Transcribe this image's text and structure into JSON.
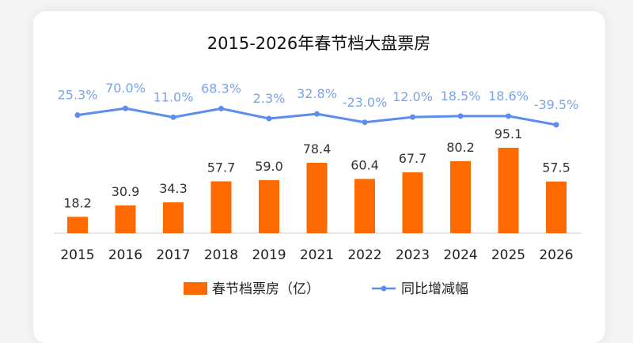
{
  "chart_data": {
    "type": "bar+line",
    "title": "2015-2026年春节档大盘票房",
    "categories": [
      "2015",
      "2016",
      "2017",
      "2018",
      "2019",
      "2021",
      "2022",
      "2023",
      "2024",
      "2025",
      "2026"
    ],
    "series": [
      {
        "name": "春节档票房（亿）",
        "type": "bar",
        "color": "#FF6A00",
        "values": [
          18.2,
          30.9,
          34.3,
          57.7,
          59.0,
          78.4,
          60.4,
          67.7,
          80.2,
          95.1,
          57.5
        ],
        "labels": [
          "18.2",
          "30.9",
          "34.3",
          "57.7",
          "59.0",
          "78.4",
          "60.4",
          "67.7",
          "80.2",
          "95.1",
          "57.5"
        ]
      },
      {
        "name": "同比增减幅",
        "type": "line",
        "color": "#5B8DEF",
        "values": [
          25.3,
          70.0,
          11.0,
          68.3,
          2.3,
          32.8,
          -23.0,
          12.0,
          18.5,
          18.6,
          -39.5
        ],
        "labels": [
          "25.3%",
          "70.0%",
          "11.0%",
          "68.3%",
          "2.3%",
          "32.8%",
          "-23.0%",
          "12.0%",
          "18.5%",
          "18.6%",
          "-39.5%"
        ]
      }
    ],
    "legend": "bottom",
    "grid": false
  }
}
